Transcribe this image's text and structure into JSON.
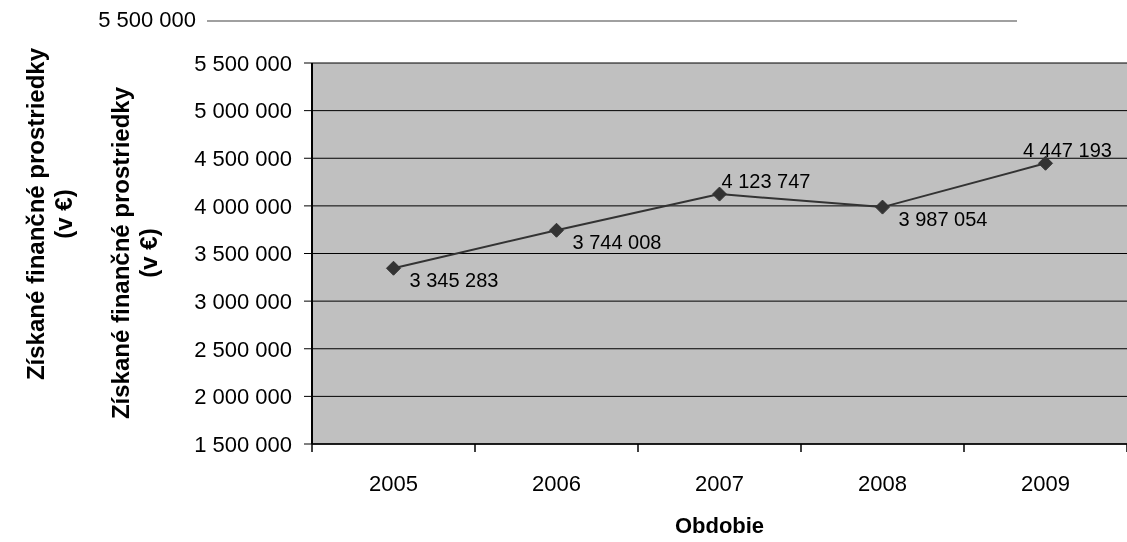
{
  "chart_data": {
    "type": "line",
    "xlabel": "Obdobie",
    "ylabel": "Získané finančné prostriedky (v €)",
    "categories": [
      "2005",
      "2006",
      "2007",
      "2008",
      "2009"
    ],
    "series": [
      {
        "color": "#333333",
        "values": [
          3345283,
          3744008,
          4123747,
          3987054,
          4447193
        ],
        "value_labels": [
          "3 345 283",
          "3 744 008",
          "4 123 747",
          "3 987 054",
          "4 447 193"
        ]
      }
    ],
    "ylim": [
      1500000,
      5500000
    ],
    "yticks": [
      {
        "value": 1500000,
        "label": "1 500 000"
      },
      {
        "value": 2000000,
        "label": "2 000 000"
      },
      {
        "value": 2500000,
        "label": "2 500 000"
      },
      {
        "value": 3000000,
        "label": "3 000 000"
      },
      {
        "value": 3500000,
        "label": "3 500 000"
      },
      {
        "value": 4000000,
        "label": "4 000 000"
      },
      {
        "value": 4500000,
        "label": "4 500 000"
      },
      {
        "value": 5000000,
        "label": "5 000 000"
      },
      {
        "value": 5500000,
        "label": "5 500 000"
      }
    ],
    "grid": "y",
    "marker": "diamond",
    "line_style": "solid",
    "annotations": [
      "Získané finančné prostriedky (v €)",
      "5 500 000"
    ]
  }
}
